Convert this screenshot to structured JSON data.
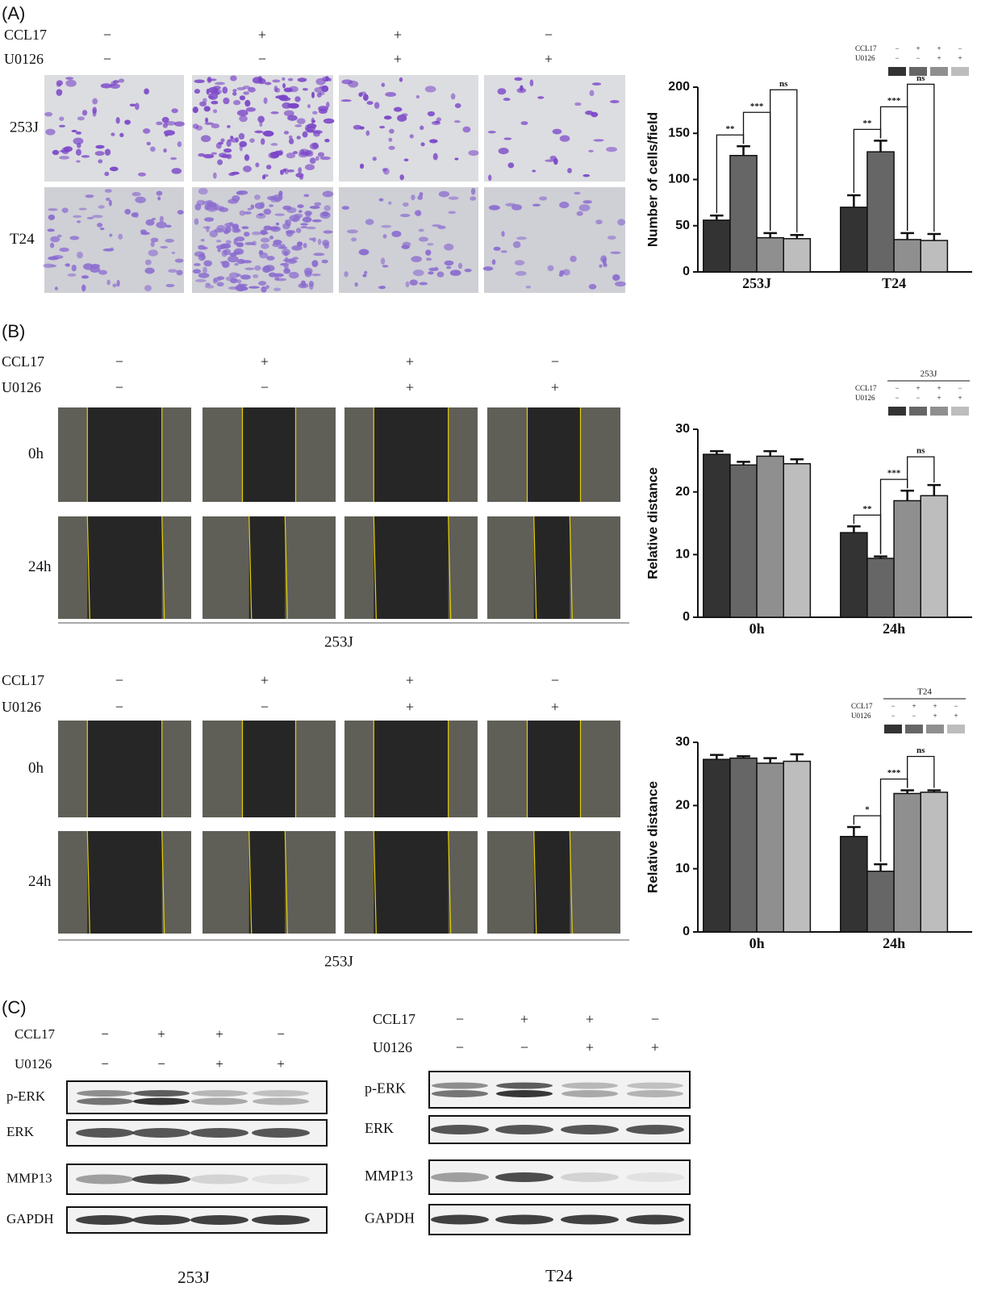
{
  "panel_a": {
    "label": "(A)",
    "treatments": [
      {
        "name": "CCL17",
        "signs": [
          "−",
          "+",
          "+",
          "−"
        ]
      },
      {
        "name": "U0126",
        "signs": [
          "−",
          "−",
          "+",
          "+"
        ]
      }
    ],
    "rows": [
      "253J",
      "T24"
    ]
  },
  "panel_b": {
    "label": "(B)",
    "blocks": [
      {
        "treatments": [
          {
            "name": "CCL17",
            "signs": [
              "−",
              "+",
              "+",
              "−"
            ]
          },
          {
            "name": "U0126",
            "signs": [
              "−",
              "−",
              "+",
              "+"
            ]
          }
        ],
        "rows": [
          "0h",
          "24h"
        ],
        "caption": "253J"
      },
      {
        "treatments": [
          {
            "name": "CCL17",
            "signs": [
              "−",
              "+",
              "+",
              "−"
            ]
          },
          {
            "name": "U0126",
            "signs": [
              "−",
              "−",
              "+",
              "+"
            ]
          }
        ],
        "rows": [
          "0h",
          "24h"
        ],
        "caption": "253J"
      }
    ]
  },
  "panel_c": {
    "label": "(C)",
    "blots": [
      {
        "treatments": [
          {
            "name": "CCL17",
            "signs": [
              "−",
              "+",
              "+",
              "−"
            ]
          },
          {
            "name": "U0126",
            "signs": [
              "−",
              "−",
              "+",
              "+"
            ]
          }
        ],
        "proteins": [
          "p-ERK",
          "ERK",
          "MMP13",
          "GAPDH"
        ],
        "caption": "253J"
      },
      {
        "treatments": [
          {
            "name": "CCL17",
            "signs": [
              "−",
              "+",
              "+",
              "−"
            ]
          },
          {
            "name": "U0126",
            "signs": [
              "−",
              "−",
              "+",
              "+"
            ]
          }
        ],
        "proteins": [
          "p-ERK",
          "ERK",
          "MMP13",
          "GAPDH"
        ],
        "caption": "T24"
      }
    ]
  },
  "chart_data": [
    {
      "type": "bar",
      "y_label": "Number of cells/field",
      "categories": [
        "253J",
        "T24"
      ],
      "ylim": [
        0,
        200
      ],
      "yticks": [
        0,
        50,
        100,
        150,
        200
      ],
      "series": [
        {
          "color": "#333333",
          "values": [
            56,
            70
          ],
          "errors": [
            5,
            13
          ]
        },
        {
          "color": "#666666",
          "values": [
            126,
            130
          ],
          "errors": [
            10,
            12
          ]
        },
        {
          "color": "#8f8f8f",
          "values": [
            37,
            35
          ],
          "errors": [
            5,
            7
          ]
        },
        {
          "color": "#bdbdbd",
          "values": [
            36,
            34
          ],
          "errors": [
            4,
            7
          ]
        }
      ],
      "legend": {
        "rows": [
          {
            "name": "CCL17",
            "signs": [
              "−",
              "+",
              "+",
              "−"
            ]
          },
          {
            "name": "U0126",
            "signs": [
              "−",
              "−",
              "+",
              "+"
            ]
          }
        ]
      },
      "annotations": [
        {
          "text": "**",
          "category": 0,
          "from": 0,
          "to": 1
        },
        {
          "text": "***",
          "category": 0,
          "from": 1,
          "to": 2
        },
        {
          "text": "ns",
          "category": 0,
          "from": 2,
          "to": 3
        },
        {
          "text": "**",
          "category": 1,
          "from": 0,
          "to": 1
        },
        {
          "text": "***",
          "category": 1,
          "from": 1,
          "to": 2
        },
        {
          "text": "ns",
          "category": 1,
          "from": 2,
          "to": 3
        }
      ]
    },
    {
      "type": "bar",
      "y_label": "Relative distance",
      "categories": [
        "0h",
        "24h"
      ],
      "ylim": [
        0,
        30
      ],
      "yticks": [
        0,
        10,
        20,
        30
      ],
      "series": [
        {
          "color": "#333333",
          "values": [
            26,
            13.5
          ],
          "errors": [
            0.5,
            1
          ]
        },
        {
          "color": "#666666",
          "values": [
            24.3,
            9.4
          ],
          "errors": [
            0.5,
            0.3
          ]
        },
        {
          "color": "#8f8f8f",
          "values": [
            25.7,
            18.6
          ],
          "errors": [
            0.8,
            1.6
          ]
        },
        {
          "color": "#bdbdbd",
          "values": [
            24.5,
            19.4
          ],
          "errors": [
            0.7,
            1.7
          ]
        }
      ],
      "legend": {
        "title": "253J",
        "rows": [
          {
            "name": "CCL17",
            "signs": [
              "−",
              "+",
              "+",
              "−"
            ]
          },
          {
            "name": "U0126",
            "signs": [
              "−",
              "−",
              "+",
              "+"
            ]
          }
        ]
      },
      "annotations": [
        {
          "text": "**",
          "category": 1,
          "from": 0,
          "to": 1
        },
        {
          "text": "***",
          "category": 1,
          "from": 1,
          "to": 2
        },
        {
          "text": "ns",
          "category": 1,
          "from": 2,
          "to": 3
        }
      ]
    },
    {
      "type": "bar",
      "y_label": "Relative distance",
      "categories": [
        "0h",
        "24h"
      ],
      "ylim": [
        0,
        30
      ],
      "yticks": [
        0,
        10,
        20,
        30
      ],
      "series": [
        {
          "color": "#333333",
          "values": [
            27.3,
            15.1
          ],
          "errors": [
            0.7,
            1.5
          ]
        },
        {
          "color": "#666666",
          "values": [
            27.5,
            9.6
          ],
          "errors": [
            0.3,
            1.1
          ]
        },
        {
          "color": "#8f8f8f",
          "values": [
            26.7,
            21.9
          ],
          "errors": [
            0.8,
            0.5
          ]
        },
        {
          "color": "#bdbdbd",
          "values": [
            27,
            22.1
          ],
          "errors": [
            1.1,
            0.3
          ]
        }
      ],
      "legend": {
        "title": "T24",
        "rows": [
          {
            "name": "CCL17",
            "signs": [
              "−",
              "+",
              "+",
              "−"
            ]
          },
          {
            "name": "U0126",
            "signs": [
              "−",
              "−",
              "+",
              "+"
            ]
          }
        ]
      },
      "annotations": [
        {
          "text": "*",
          "category": 1,
          "from": 0,
          "to": 1
        },
        {
          "text": "***",
          "category": 1,
          "from": 1,
          "to": 2
        },
        {
          "text": "ns",
          "category": 1,
          "from": 2,
          "to": 3
        }
      ]
    }
  ]
}
